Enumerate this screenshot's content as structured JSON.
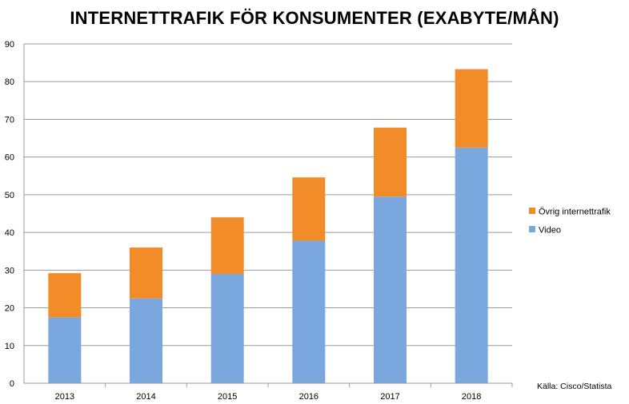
{
  "chart_data": {
    "type": "bar",
    "stacked": true,
    "title": "INTERNETTRAFIK FÖR KONSUMENTER (EXABYTE/MÅN)",
    "xlabel": "",
    "ylabel": "",
    "categories": [
      "2013",
      "2014",
      "2015",
      "2016",
      "2017",
      "2018"
    ],
    "ylim": [
      0,
      90
    ],
    "yticks": [
      0,
      10,
      20,
      30,
      40,
      50,
      60,
      70,
      80,
      90
    ],
    "grid": true,
    "legend_position": "right",
    "series": [
      {
        "name": "Video",
        "color": "#7aa8de",
        "values": [
          17.5,
          22.5,
          29.0,
          37.8,
          49.5,
          62.5
        ]
      },
      {
        "name": "Övrig internettrafik",
        "color": "#f28c28",
        "values": [
          11.7,
          13.5,
          15.0,
          16.8,
          18.3,
          20.8
        ]
      }
    ],
    "source_note": "Källa: Cisco/Statista"
  }
}
